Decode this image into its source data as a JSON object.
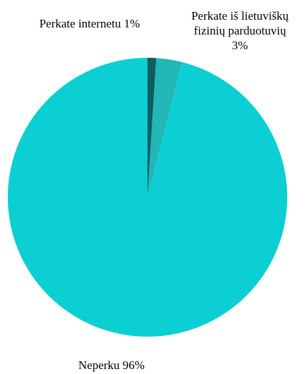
{
  "chart_data": {
    "type": "pie",
    "title": "",
    "series": [
      {
        "values": [
          1,
          3,
          96
        ],
        "colors": [
          "#0c5c62",
          "#22b7b5",
          "#0ccfd3"
        ]
      }
    ],
    "categories": [
      "Perkate internetu",
      "Perkate iš lietuviškų fizinių parduotuvių",
      "Neperku"
    ],
    "labels": [
      {
        "lines": [
          "Perkate internetu",
          "1%"
        ],
        "style": "inline"
      },
      {
        "lines": [
          "Perkate iš lietuviškų",
          "fizinių parduotuvių",
          "3%"
        ],
        "style": "stacked"
      },
      {
        "lines": [
          "Neperku",
          "96%"
        ],
        "style": "inline"
      }
    ],
    "legend": false,
    "start_angle": "12 o'clock",
    "direction": "clockwise"
  }
}
